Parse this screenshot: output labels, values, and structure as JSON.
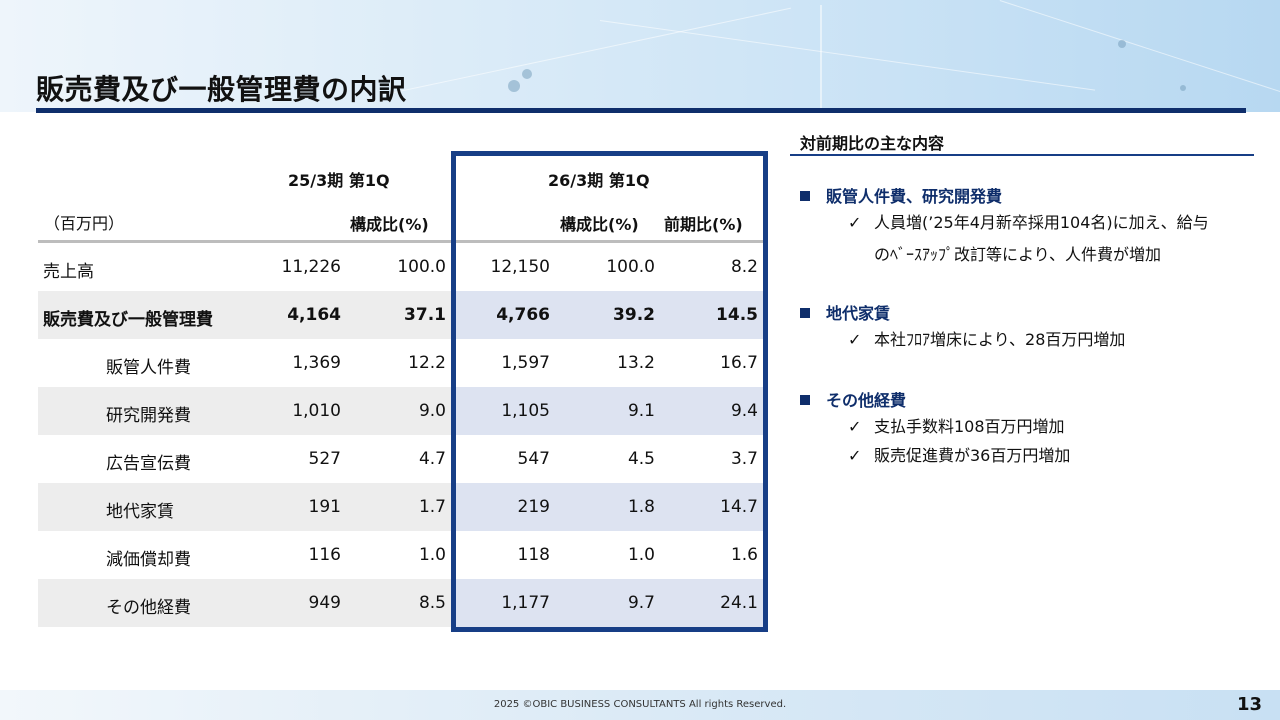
{
  "title": "販売費及び一般管理費の内訳",
  "table": {
    "period_prev": "25/3期 第1Q",
    "period_curr": "26/3期 第1Q",
    "unit": "（百万円）",
    "col_ratio_prev": "構成比(%)",
    "col_ratio_curr": "構成比(%)",
    "col_yoy": "前期比(%)",
    "rows": [
      {
        "label": "売上高",
        "prev": "11,226",
        "prev_ratio": "100.0",
        "curr": "12,150",
        "curr_ratio": "100.0",
        "yoy": "8.2"
      },
      {
        "label": "販売費及び一般管理費",
        "prev": "4,164",
        "prev_ratio": "37.1",
        "curr": "4,766",
        "curr_ratio": "39.2",
        "yoy": "14.5"
      },
      {
        "label": "販管人件費",
        "prev": "1,369",
        "prev_ratio": "12.2",
        "curr": "1,597",
        "curr_ratio": "13.2",
        "yoy": "16.7"
      },
      {
        "label": "研究開発費",
        "prev": "1,010",
        "prev_ratio": "9.0",
        "curr": "1,105",
        "curr_ratio": "9.1",
        "yoy": "9.4"
      },
      {
        "label": "広告宣伝費",
        "prev": "527",
        "prev_ratio": "4.7",
        "curr": "547",
        "curr_ratio": "4.5",
        "yoy": "3.7"
      },
      {
        "label": "地代家賃",
        "prev": "191",
        "prev_ratio": "1.7",
        "curr": "219",
        "curr_ratio": "1.8",
        "yoy": "14.7"
      },
      {
        "label": "減価償却費",
        "prev": "116",
        "prev_ratio": "1.0",
        "curr": "118",
        "curr_ratio": "1.0",
        "yoy": "1.6"
      },
      {
        "label": "その他経費",
        "prev": "949",
        "prev_ratio": "8.5",
        "curr": "1,177",
        "curr_ratio": "9.7",
        "yoy": "24.1"
      }
    ]
  },
  "panel": {
    "title": "対前期比の主な内容",
    "sections": [
      {
        "head": "販管人件費、研究開発費",
        "items": [
          "人員増(’25年4月新卒採用104名)に加え、給与"
        ],
        "cont": "のﾍﾞｰｽｱｯﾌﾟ改訂等により、人件費が増加"
      },
      {
        "head": "地代家賃",
        "items": [
          "本社ﾌﾛｱ増床により、28百万円増加"
        ]
      },
      {
        "head": "その他経費",
        "items": [
          "支払手数料108百万円増加",
          "販売促進費が36百万円増加"
        ]
      }
    ],
    "check_glyph": "✓"
  },
  "footer": {
    "copyright": "2025 ©OBIC BUSINESS CONSULTANTS All rights Reserved.",
    "page_number": "13"
  },
  "colors": {
    "accent": "#0f2e6b",
    "highlight_border": "#173e86",
    "row_shade_left": "#ededed",
    "row_shade_right": "#dde3f1"
  }
}
